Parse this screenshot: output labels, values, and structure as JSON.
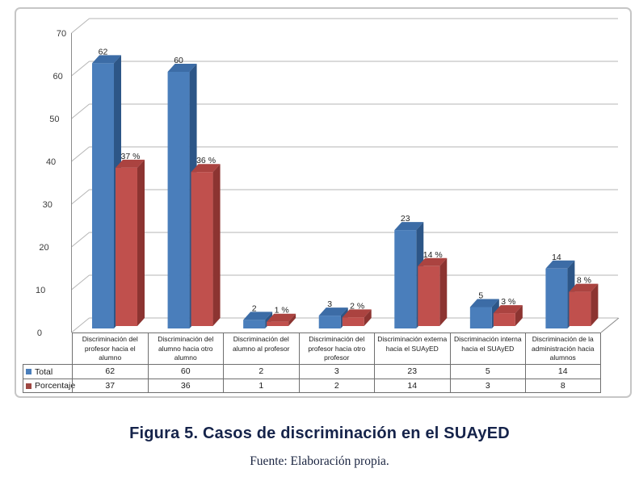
{
  "caption": {
    "title": "Figura 5. Casos de discriminación en el SUAyED",
    "source": "Fuente: Elaboración propia."
  },
  "colors": {
    "title_text": "#15234a",
    "source_text": "#1a2440",
    "gridline": "#b5b5b5",
    "axis": "#8c8c8c",
    "frame_border": "#c6c6c6",
    "table_border": "#6f6f6f",
    "label_text": "#1f1f1f"
  },
  "chart_data": {
    "type": "bar",
    "style": "3d-clustered-column",
    "title": "",
    "xlabel": "",
    "ylabel": "",
    "ylim": [
      0,
      70
    ],
    "yticks": [
      0,
      10,
      20,
      30,
      40,
      50,
      60,
      70
    ],
    "grid": true,
    "legend_position": "data-table-left",
    "categories": [
      "Discriminación del profesor hacia el alumno",
      "Discriminación del alumno hacia otro alumno",
      "Discriminación del alumno al profesor",
      "Discriminación del profesor hacia otro profesor",
      "Discriminación externa hacia el SUAyED",
      "Discriminación interna hacia el SUAyED",
      "Discriminación de la administración hacia alumnos"
    ],
    "series": [
      {
        "name": "Total",
        "values": [
          62,
          60,
          2,
          3,
          23,
          5,
          14
        ],
        "bar_labels": [
          "62",
          "60",
          "2",
          "3",
          "23",
          "5",
          "14"
        ],
        "color_front": "#4a7ebb",
        "color_top": "#3c6ca6",
        "color_side": "#2d5687",
        "legend_color": "#4a7ebb"
      },
      {
        "name": "Porcentaje",
        "values": [
          37,
          36,
          1,
          2,
          14,
          3,
          8
        ],
        "bar_labels": [
          "37 %",
          "36 %",
          "1 %",
          "2 %",
          "14 %",
          "3 %",
          "8 %"
        ],
        "color_front": "#c0504d",
        "color_top": "#ab4340",
        "color_side": "#8c3431",
        "legend_color": "#9e4742"
      }
    ],
    "data_table": {
      "rows": [
        {
          "label": "Total",
          "values": [
            "62",
            "60",
            "2",
            "3",
            "23",
            "5",
            "14"
          ]
        },
        {
          "label": "Porcentaje",
          "values": [
            "37",
            "36",
            "1",
            "2",
            "14",
            "3",
            "8"
          ]
        }
      ]
    }
  }
}
